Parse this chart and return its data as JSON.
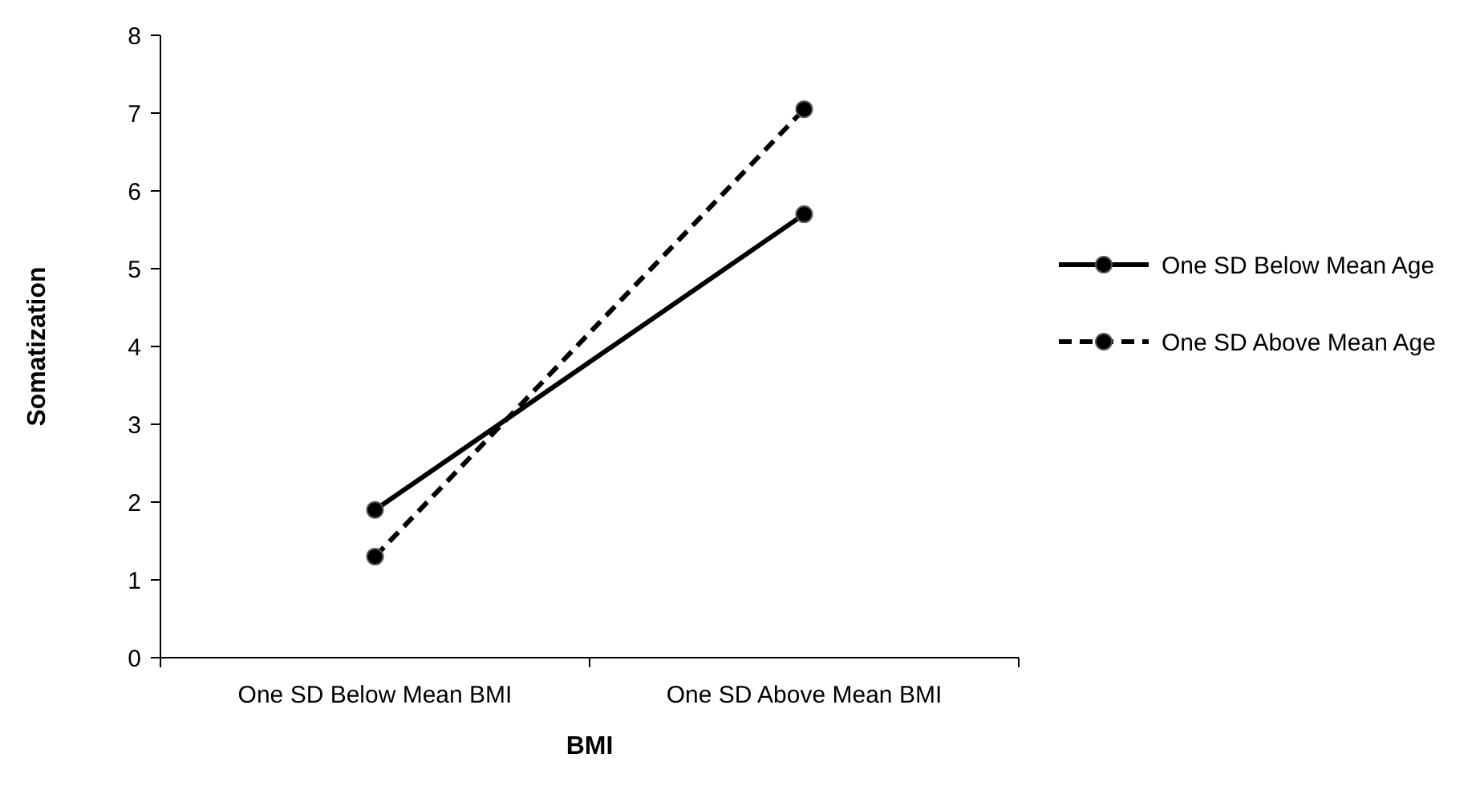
{
  "chart_data": {
    "type": "line",
    "xlabel": "BMI",
    "ylabel": "Somatization",
    "categories": [
      "One SD Below Mean BMI",
      "One SD Above Mean BMI"
    ],
    "series": [
      {
        "name": "One SD Below Mean Age",
        "color": "#000000",
        "values": [
          1.9,
          5.7
        ],
        "line_style": "solid"
      },
      {
        "name": "One SD Above Mean Age",
        "color": "#000000",
        "values": [
          1.3,
          7.05
        ],
        "line_style": "dashed"
      }
    ],
    "ylim": [
      0,
      8
    ],
    "yticks": [
      0,
      1,
      2,
      3,
      4,
      5,
      6,
      7,
      8
    ],
    "grid": false,
    "legend": "right",
    "marker": "circle"
  }
}
